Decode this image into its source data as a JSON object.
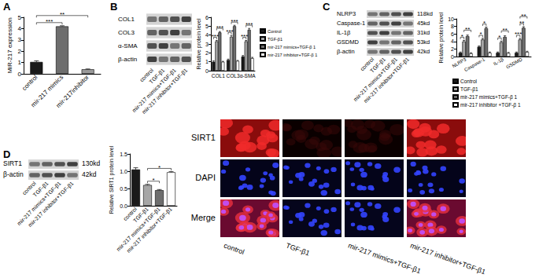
{
  "panel_labels": [
    "A",
    "B",
    "C",
    "D"
  ],
  "chart_data": [
    {
      "type": "bar",
      "categories": [
        "control",
        "mir-217 mimics",
        "mir-217inhibitor"
      ],
      "values": [
        1.05,
        4.2,
        0.4
      ],
      "errors": [
        0.1,
        0.05,
        0.03
      ],
      "colors": [
        "#1a1a1a",
        "#6e6e6e",
        "#9a9a9a"
      ],
      "ylabel": "MiR-217 expression",
      "ylim": [
        0,
        5
      ],
      "yticks": [
        0,
        1,
        2,
        3,
        4,
        5
      ],
      "grid": false,
      "annotations": [
        {
          "text": "***",
          "between": [
            "control",
            "mir-217 mimics"
          ]
        },
        {
          "text": "**",
          "between": [
            "control",
            "mir-217inhibitor"
          ]
        }
      ]
    },
    {
      "type": "bar",
      "categories": [
        "COL1",
        "COL3",
        "α-SMA"
      ],
      "series": [
        {
          "name": "Control",
          "color": "#1a1a1a",
          "values": [
            1.0,
            1.2,
            1.6
          ],
          "errors": [
            0.1,
            0.1,
            0.1
          ]
        },
        {
          "name": "TGF-β1",
          "color": "#a6a6a6",
          "values": [
            3.3,
            3.8,
            3.3
          ],
          "errors": [
            0.1,
            0.15,
            0.1
          ]
        },
        {
          "name": "mir-217 mimics+TGF-β 1",
          "color": "#6e6e6e",
          "values": [
            4.3,
            5.0,
            4.6
          ],
          "errors": [
            0.1,
            0.1,
            0.15
          ]
        },
        {
          "name": "mir-217 inhibitor+TGF-β 1",
          "color": "#ffffff",
          "values": [
            1.0,
            1.1,
            1.4
          ],
          "errors": [
            0.05,
            0.05,
            0.1
          ]
        }
      ],
      "ylabel": "Relative protein level",
      "ylim": [
        0,
        6
      ],
      "yticks": [
        0,
        1,
        2,
        3,
        4,
        5,
        6
      ],
      "grid": false,
      "legend": "right",
      "annotations": [
        {
          "text": "***",
          "category": "COL1",
          "between": [
            "Control",
            "TGF-β1"
          ]
        },
        {
          "text": "***",
          "category": "COL1",
          "between": [
            "TGF-β1",
            "mir-217 inhibitor+TGF-β 1"
          ]
        },
        {
          "text": "***",
          "category": "COL3",
          "between": [
            "Control",
            "TGF-β1"
          ]
        },
        {
          "text": "***",
          "category": "COL3",
          "between": [
            "TGF-β1",
            "mir-217 inhibitor+TGF-β 1"
          ]
        },
        {
          "text": "***",
          "category": "α-SMA",
          "between": [
            "Control",
            "TGF-β1"
          ]
        },
        {
          "text": "***",
          "category": "α-SMA",
          "between": [
            "TGF-β1",
            "mir-217 inhibitor+TGF-β 1"
          ]
        }
      ]
    },
    {
      "type": "bar",
      "categories": [
        "NLRP3",
        "Caspase-1",
        "IL-1β",
        "GSDMD"
      ],
      "series": [
        {
          "name": "Control",
          "color": "#1a1a1a",
          "values": [
            1.0,
            2.6,
            1.0,
            1.0
          ],
          "errors": [
            0.2,
            0.2,
            0.2,
            0.2
          ]
        },
        {
          "name": "TGF-β1",
          "color": "#a6a6a6",
          "values": [
            4.0,
            4.5,
            3.8,
            4.5
          ],
          "errors": [
            0.3,
            0.3,
            0.3,
            0.3
          ]
        },
        {
          "name": "mir-217 mimics+TGF-β 1",
          "color": "#6e6e6e",
          "values": [
            5.4,
            7.5,
            5.2,
            7.6
          ],
          "errors": [
            0.3,
            0.3,
            0.3,
            0.3
          ]
        },
        {
          "name": "mir-217 inhibitor +TGF-β 1",
          "color": "#ffffff",
          "values": [
            0.8,
            1.0,
            0.9,
            1.2
          ],
          "errors": [
            0.2,
            0.2,
            0.2,
            0.2
          ]
        }
      ],
      "ylabel": "Relative protein level",
      "ylim": [
        0,
        10
      ],
      "yticks": [
        0,
        2,
        4,
        6,
        8,
        10
      ],
      "grid": false,
      "legend": "bottom",
      "annotations": [
        {
          "text": "*",
          "category": "NLRP3",
          "between": [
            "Control",
            "TGF-β1"
          ]
        },
        {
          "text": "**",
          "category": "NLRP3",
          "between": [
            "TGF-β1",
            "mir-217 inhibitor +TGF-β 1"
          ]
        },
        {
          "text": "*",
          "category": "Caspase-1",
          "between": [
            "Control",
            "TGF-β1"
          ]
        },
        {
          "text": "*",
          "category": "Caspase-1",
          "between": [
            "TGF-β1",
            "mir-217 mimics+TGF-β 1"
          ]
        },
        {
          "text": "*",
          "category": "IL-1β",
          "between": [
            "Control",
            "TGF-β1"
          ]
        },
        {
          "text": "**",
          "category": "IL-1β",
          "between": [
            "TGF-β1",
            "mir-217 inhibitor +TGF-β 1"
          ]
        },
        {
          "text": "***",
          "category": "GSDMD",
          "between": [
            "Control",
            "TGF-β1"
          ]
        },
        {
          "text": "**",
          "category": "GSDMD",
          "between": [
            "TGF-β1",
            "mir-217 mimics+TGF-β 1"
          ]
        },
        {
          "text": "**",
          "category": "GSDMD",
          "between": [
            "TGF-β1",
            "mir-217 inhibitor +TGF-β 1"
          ]
        }
      ]
    },
    {
      "type": "bar",
      "categories": [
        "control",
        "TGF-β1",
        "mir-217 mimics+TGF-β1",
        "mir-217 inhibitor+TGF-β1"
      ],
      "values": [
        1.05,
        0.6,
        0.45,
        0.97
      ],
      "errors": [
        0.05,
        0.02,
        0.02,
        0.02
      ],
      "colors": [
        "#1a1a1a",
        "#a6a6a6",
        "#6e6e6e",
        "#ffffff"
      ],
      "ylabel": "Relative SIRT1 protein level",
      "ylim": [
        0,
        1.5
      ],
      "yticks": [
        {
          "value": 0,
          "label": "0.0"
        },
        {
          "value": 0.5,
          "label": "0.5"
        },
        {
          "value": 1,
          "label": "1.0"
        },
        {
          "value": 1.5,
          "label": "1.5"
        }
      ],
      "grid": false,
      "annotations": [
        {
          "text": "*",
          "between": [
            "TGF-β1",
            "mir-217 mimics+TGF-β1"
          ]
        },
        {
          "text": "*",
          "between": [
            "TGF-β1",
            "mir-217 inhibitor+TGF-β1"
          ]
        }
      ]
    }
  ],
  "western_blots": [
    {
      "panel": "B",
      "bands": [
        {
          "label": "COL1"
        },
        {
          "label": "COL3"
        },
        {
          "label": "α-SMA"
        },
        {
          "label": "β-actin"
        }
      ],
      "lanes": [
        "control",
        "TGF-β1",
        "mir-217 mimics+TGF-β1",
        "mir-217 inhibitor+TGF-β1"
      ]
    },
    {
      "panel": "C",
      "bands": [
        {
          "label": "NLRP3",
          "size": "118kd"
        },
        {
          "label": "Caspase-1",
          "size": "45kd"
        },
        {
          "label": "IL-1β",
          "size": "31kd"
        },
        {
          "label": "GSDMD",
          "size": "53kd"
        },
        {
          "label": "β-actin",
          "size": "42kd"
        }
      ],
      "lanes": [
        "control",
        "TGF-β1",
        "mir-217 mimics+TGF-β1",
        "mir-217 inhibitor+TGF-β1"
      ]
    },
    {
      "panel": "D",
      "bands": [
        {
          "label": "SIRT1",
          "size": "130kd"
        },
        {
          "label": "β-actin",
          "size": "42kd"
        }
      ],
      "lanes": [
        "control",
        "TGF-β1",
        "mir-217 mimics+TGF-β1",
        "mir-217 inhibitor+TGF-β1"
      ]
    }
  ],
  "immunofluorescence": {
    "rows": [
      "SIRT1",
      "DAPI",
      "Merge"
    ],
    "columns": [
      "control",
      "TGF-β1",
      "mir-217 mimics+TGF-β1",
      "mir-217 inhibitor+TGF-β1"
    ]
  }
}
